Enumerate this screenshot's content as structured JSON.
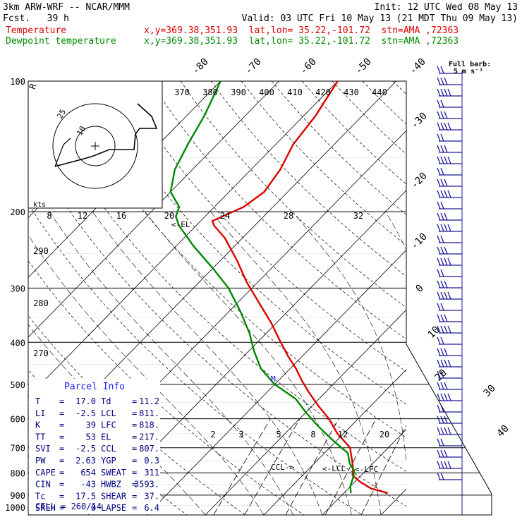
{
  "header": {
    "model": "3km ARW-WRF -- NCAR/MMM",
    "init": "Init: 12 UTC Wed 08 May 13",
    "fcst": "Fcst.   39 h",
    "valid": "Valid: 03 UTC Fri 10 May 13 (21 MDT Thu 09 May 13)",
    "temp_label": "Temperature",
    "dew_label": "Dewpoint temperature",
    "location": "x,y=369.38,351.93  lat,lon= 35.22,-101.72  stn=AMA ,72363",
    "barb_note_1": "Full barb:",
    "barb_note_2": "5 m s⁻¹"
  },
  "colors": {
    "temperature": "#e00000",
    "dewpoint": "#008800",
    "parcel_title": "#1a1aff",
    "parcel_text": "#000080",
    "wind": "#1a1a99"
  },
  "chart_data": {
    "type": "line",
    "subtype": "skew-t log-p",
    "pressure_levels": [
      100,
      200,
      300,
      400,
      500,
      600,
      700,
      800,
      900,
      1000
    ],
    "isotherm_labels": [
      "-80",
      "-70",
      "-60",
      "-50",
      "-40",
      "-30",
      "-20",
      "-10",
      "0",
      "10",
      "20",
      "30",
      "40"
    ],
    "theta_labels_top": [
      "370",
      "380",
      "390",
      "400",
      "410",
      "420",
      "430",
      "440"
    ],
    "theta_labels_left": [
      "290",
      "280",
      "270"
    ],
    "mixing_ratio_labels": [
      "2",
      "3",
      "5",
      "8",
      "12",
      "20"
    ],
    "hodograph_labels": [
      "kts",
      "8",
      "12",
      "16",
      "20",
      "24",
      "28",
      "32"
    ],
    "hodo_ring_labels": [
      "25",
      "10"
    ],
    "parcel_levels": [
      "EL",
      "M",
      "CCL",
      "LCL",
      "LFC"
    ],
    "series": [
      {
        "name": "Temperature",
        "pressure": [
          890,
          870,
          840,
          810,
          790,
          760,
          730,
          700,
          650,
          600,
          560,
          520,
          490,
          460,
          430,
          400,
          360,
          320,
          290,
          260,
          230,
          215,
          210,
          205,
          195,
          180,
          160,
          140,
          120,
          100
        ],
        "values": [
          17.5,
          14,
          11,
          8.5,
          7.8,
          6.5,
          5,
          3.5,
          -1,
          -5,
          -9,
          -13,
          -16,
          -19,
          -22.5,
          -26,
          -31,
          -37,
          -42,
          -47,
          -53,
          -57,
          -58,
          -57,
          -55,
          -54,
          -55,
          -57,
          -58,
          -60
        ]
      },
      {
        "name": "Dewpoint temperature",
        "pressure": [
          890,
          860,
          820,
          790,
          760,
          720,
          700,
          660,
          620,
          580,
          540,
          500,
          460,
          420,
          380,
          340,
          300,
          270,
          240,
          215,
          205,
          195,
          180,
          160,
          140,
          120,
          100
        ],
        "values": [
          11.2,
          10,
          9,
          8,
          6,
          4,
          2,
          -2,
          -6,
          -10,
          -14,
          -20,
          -25,
          -29,
          -33,
          -38,
          -44,
          -50,
          -57,
          -63,
          -65,
          -66,
          -70,
          -73,
          -75,
          -77,
          -80
        ]
      }
    ]
  },
  "parcel": {
    "title": "Parcel Info",
    "rows": [
      {
        "k1": "T",
        "v1": "17.0",
        "k2": "Td",
        "v2": "11.2"
      },
      {
        "k1": "LI",
        "v1": "-2.5",
        "k2": "LCL",
        "v2": "811."
      },
      {
        "k1": "K",
        "v1": "39",
        "k2": "LFC",
        "v2": "818."
      },
      {
        "k1": "TT",
        "v1": "53",
        "k2": "EL",
        "v2": "217."
      },
      {
        "k1": "SVI",
        "v1": "-2.5",
        "k2": "CCL",
        "v2": "807."
      },
      {
        "k1": "PW",
        "v1": "2.63",
        "k2": "YGP",
        "v2": "0.3"
      },
      {
        "k1": "CAPE",
        "v1": "654",
        "k2": "SWEAT",
        "v2": "311"
      },
      {
        "k1": "CIN",
        "v1": "-43",
        "k2": "HWBZ",
        "v2": "3593."
      },
      {
        "k1": "Tc",
        "v1": "17.5",
        "k2": "SHEAR",
        "v2": "37."
      },
      {
        "k1": "SREH",
        "v1": "0",
        "k2": "LAPSE",
        "v2": "6.4"
      }
    ],
    "cell_line": "CELL = 260/14"
  }
}
